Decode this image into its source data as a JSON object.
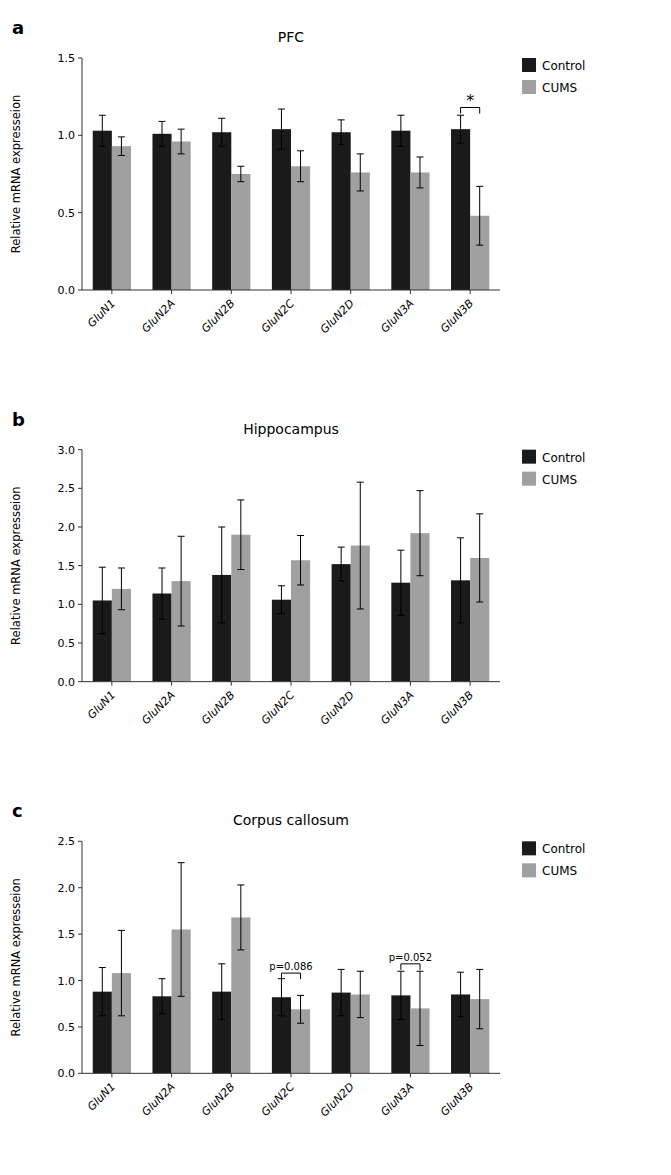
{
  "chart_data": [
    {
      "type": "bar",
      "title": "PFC",
      "panel_label": "a",
      "categories": [
        "GluN1",
        "GluN2A",
        "GluN2B",
        "GluN2C",
        "GluN2D",
        "GluN3A",
        "GluN3B"
      ],
      "series": [
        {
          "name": "Control",
          "color": "#1a1a1a",
          "values": [
            1.03,
            1.01,
            1.02,
            1.04,
            1.02,
            1.03,
            1.04
          ],
          "errors": [
            0.1,
            0.08,
            0.09,
            0.13,
            0.08,
            0.1,
            0.09
          ]
        },
        {
          "name": "CUMS",
          "color": "#a0a0a0",
          "values": [
            0.93,
            0.96,
            0.75,
            0.8,
            0.76,
            0.76,
            0.48
          ],
          "errors": [
            0.06,
            0.08,
            0.05,
            0.1,
            0.12,
            0.1,
            0.19
          ]
        }
      ],
      "ylabel": "Relative mRNA expresseion",
      "ylim": [
        0,
        1.5
      ],
      "yticks": [
        {
          "value": 0.0,
          "label": "0.0"
        },
        {
          "value": 0.5,
          "label": "0.5"
        },
        {
          "value": 1.0,
          "label": "1.0"
        },
        {
          "value": 1.5,
          "label": "1.5"
        }
      ],
      "annotations": [
        {
          "category": "GluN3B",
          "label": "*",
          "y": 1.18
        }
      ],
      "legend": "right",
      "grid": false
    },
    {
      "type": "bar",
      "title": "Hippocampus",
      "panel_label": "b",
      "categories": [
        "GluN1",
        "GluN2A",
        "GluN2B",
        "GluN2C",
        "GluN2D",
        "GluN3A",
        "GluN3B"
      ],
      "series": [
        {
          "name": "Control",
          "color": "#1a1a1a",
          "values": [
            1.05,
            1.14,
            1.38,
            1.06,
            1.52,
            1.28,
            1.31
          ],
          "errors": [
            0.43,
            0.33,
            0.62,
            0.18,
            0.22,
            0.42,
            0.55
          ]
        },
        {
          "name": "CUMS",
          "color": "#a0a0a0",
          "values": [
            1.2,
            1.3,
            1.9,
            1.57,
            1.76,
            1.92,
            1.6
          ],
          "errors": [
            0.27,
            0.58,
            0.45,
            0.32,
            0.82,
            0.55,
            0.57
          ]
        }
      ],
      "ylabel": "Relative mRNA expresseion",
      "ylim": [
        0,
        3.0
      ],
      "yticks": [
        {
          "value": 0.0,
          "label": "0.0"
        },
        {
          "value": 0.5,
          "label": "0.5"
        },
        {
          "value": 1.0,
          "label": "1.0"
        },
        {
          "value": 1.5,
          "label": "1.5"
        },
        {
          "value": 2.0,
          "label": "2.0"
        },
        {
          "value": 2.5,
          "label": "2.5"
        },
        {
          "value": 3.0,
          "label": "3.0"
        }
      ],
      "legend": "right",
      "grid": false
    },
    {
      "type": "bar",
      "title": "Corpus callosum",
      "panel_label": "c",
      "categories": [
        "GluN1",
        "GluN2A",
        "GluN2B",
        "GluN2C",
        "GluN2D",
        "GluN3A",
        "GluN3B"
      ],
      "series": [
        {
          "name": "Control",
          "color": "#1a1a1a",
          "values": [
            0.88,
            0.83,
            0.88,
            0.82,
            0.87,
            0.84,
            0.85
          ],
          "errors": [
            0.26,
            0.19,
            0.3,
            0.2,
            0.25,
            0.26,
            0.24
          ]
        },
        {
          "name": "CUMS",
          "color": "#a0a0a0",
          "values": [
            1.08,
            1.55,
            1.68,
            0.69,
            0.85,
            0.7,
            0.8
          ],
          "errors": [
            0.46,
            0.72,
            0.35,
            0.15,
            0.25,
            0.4,
            0.32
          ]
        }
      ],
      "ylabel": "Relative mRNA expresseion",
      "ylim": [
        0,
        2.5
      ],
      "yticks": [
        {
          "value": 0.0,
          "label": "0.0"
        },
        {
          "value": 0.5,
          "label": "0.5"
        },
        {
          "value": 1.0,
          "label": "1.0"
        },
        {
          "value": 1.5,
          "label": "1.5"
        },
        {
          "value": 2.0,
          "label": "2.0"
        },
        {
          "value": 2.5,
          "label": "2.5"
        }
      ],
      "annotations": [
        {
          "category": "GluN2C",
          "label": "p=0.086",
          "y": 1.08
        },
        {
          "category": "GluN3A",
          "label": "p=0.052",
          "y": 1.18
        }
      ],
      "legend": "right",
      "grid": false
    }
  ]
}
